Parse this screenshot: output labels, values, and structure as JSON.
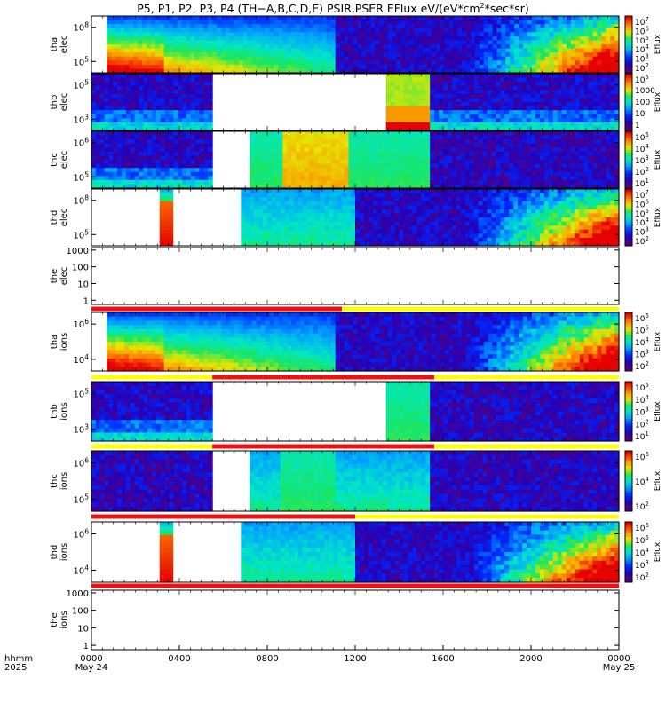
{
  "title": {
    "prefix": "P5, P1, P2, P3, P4 (TH−A,B,C,D,E) PSIR,PSER EFlux eV/(eV*cm",
    "sup": "2",
    "suffix": "*sec*sr)"
  },
  "x_axis": {
    "row1_label": "hhmm",
    "row2_label": "2025",
    "ticks": [
      "0000",
      "0400",
      "0800",
      "1200",
      "1600",
      "2000",
      "0000"
    ],
    "tick_hours": [
      0,
      4,
      8,
      12,
      16,
      20,
      24
    ],
    "dates": [
      "May 24",
      "May 25"
    ],
    "date_hours": [
      0,
      24
    ],
    "range_hours": [
      0,
      24
    ]
  },
  "colorbar_label": "Eflux",
  "colors": {
    "red_bar": "#ee1111",
    "yellow_bar": "#ffff00",
    "background": "#ffffff"
  },
  "chart_data": [
    {
      "type": "heatmap",
      "panel": "tha_elec",
      "ylabel": [
        "tha",
        "elec"
      ],
      "yticks": [
        {
          "value": 100000,
          "base": "10",
          "exp": "5"
        },
        {
          "value": 100000000,
          "base": "10",
          "exp": "8"
        }
      ],
      "colorbar": {
        "ticks": [
          {
            "base": "10",
            "exp": "7"
          },
          {
            "base": "10",
            "exp": "6"
          },
          {
            "base": "10",
            "exp": "5"
          },
          {
            "base": "10",
            "exp": "4"
          },
          {
            "base": "10",
            "exp": "3"
          },
          {
            "base": "10",
            "exp": "2"
          }
        ]
      },
      "no_data_hours": [
        [
          0,
          0.7
        ]
      ],
      "segments": [
        {
          "start": 0.7,
          "end": 11.1,
          "pattern": "outer_hot"
        },
        {
          "start": 11.1,
          "end": 24,
          "pattern": "noise_rising"
        }
      ]
    },
    {
      "type": "heatmap",
      "panel": "thb_elec",
      "ylabel": [
        "thb",
        "elec"
      ],
      "yticks": [
        {
          "value": 1000,
          "base": "10",
          "exp": "3"
        },
        {
          "value": 100000,
          "base": "10",
          "exp": "5"
        }
      ],
      "colorbar": {
        "ticks": [
          {
            "base": "10",
            "exp": "5"
          },
          {
            "base": "",
            "exp": "",
            "text": "1000"
          },
          {
            "base": "",
            "exp": "",
            "text": "100"
          },
          {
            "base": "",
            "exp": "",
            "text": "10"
          },
          {
            "base": "",
            "exp": "",
            "text": "1"
          }
        ]
      },
      "no_data_hours": [
        [
          5.5,
          13.4
        ]
      ],
      "segments": [
        {
          "start": 0,
          "end": 5.5,
          "pattern": "noise_lowband"
        },
        {
          "start": 13.4,
          "end": 15.4,
          "pattern": "warm_block"
        },
        {
          "start": 15.4,
          "end": 24,
          "pattern": "noise_lowband"
        }
      ]
    },
    {
      "type": "heatmap",
      "panel": "thc_elec",
      "ylabel": [
        "thc",
        "elec"
      ],
      "yticks": [
        {
          "value": 100000,
          "base": "10",
          "exp": "5"
        },
        {
          "value": 1000000,
          "base": "10",
          "exp": "6"
        }
      ],
      "colorbar": {
        "ticks": [
          {
            "base": "10",
            "exp": "5"
          },
          {
            "base": "10",
            "exp": "4"
          },
          {
            "base": "10",
            "exp": "3"
          },
          {
            "base": "10",
            "exp": "2"
          },
          {
            "base": "10",
            "exp": "1"
          }
        ]
      },
      "no_data_hours": [
        [
          5.5,
          7.2
        ]
      ],
      "segments": [
        {
          "start": 0,
          "end": 5.5,
          "pattern": "noise_lowband"
        },
        {
          "start": 7.2,
          "end": 8.7,
          "pattern": "green_block"
        },
        {
          "start": 8.7,
          "end": 11.7,
          "pattern": "orange_block"
        },
        {
          "start": 11.7,
          "end": 15.4,
          "pattern": "green_block"
        },
        {
          "start": 15.4,
          "end": 24,
          "pattern": "noise"
        }
      ]
    },
    {
      "type": "heatmap",
      "panel": "thd_elec",
      "ylabel": [
        "thd",
        "elec"
      ],
      "yticks": [
        {
          "value": 100000,
          "base": "10",
          "exp": "5"
        },
        {
          "value": 100000000,
          "base": "10",
          "exp": "8"
        }
      ],
      "colorbar": {
        "ticks": [
          {
            "base": "10",
            "exp": "7"
          },
          {
            "base": "10",
            "exp": "6"
          },
          {
            "base": "10",
            "exp": "5"
          },
          {
            "base": "10",
            "exp": "4"
          },
          {
            "base": "10",
            "exp": "3"
          },
          {
            "base": "10",
            "exp": "2"
          }
        ]
      },
      "no_data_hours": [
        [
          0,
          3.1
        ],
        [
          3.7,
          6.8
        ]
      ],
      "segments": [
        {
          "start": 3.1,
          "end": 3.7,
          "pattern": "hot_strip"
        },
        {
          "start": 6.8,
          "end": 12,
          "pattern": "cool_block"
        },
        {
          "start": 12,
          "end": 24,
          "pattern": "noise_rising"
        }
      ]
    },
    {
      "type": "empty",
      "panel": "the_elec",
      "ylabel": [
        "the",
        "elec"
      ],
      "yticks": [
        {
          "value": 1,
          "text": "1"
        },
        {
          "value": 10,
          "text": "10"
        },
        {
          "value": 100,
          "text": "100"
        },
        {
          "value": 1000,
          "text": "1000"
        }
      ],
      "status_bar": [
        {
          "start": 0,
          "end": 11.4,
          "color": "red"
        },
        {
          "start": 11.4,
          "end": 24,
          "color": "yellow"
        }
      ]
    },
    {
      "type": "heatmap",
      "panel": "tha_ions",
      "ylabel": [
        "tha",
        "ions"
      ],
      "yticks": [
        {
          "value": 10000,
          "base": "10",
          "exp": "4"
        },
        {
          "value": 1000000,
          "base": "10",
          "exp": "6"
        }
      ],
      "colorbar": {
        "ticks": [
          {
            "base": "10",
            "exp": "6"
          },
          {
            "base": "10",
            "exp": "5"
          },
          {
            "base": "10",
            "exp": "4"
          },
          {
            "base": "10",
            "exp": "3"
          },
          {
            "base": "10",
            "exp": "2"
          }
        ]
      },
      "no_data_hours": [
        [
          0,
          0.7
        ]
      ],
      "segments": [
        {
          "start": 0.7,
          "end": 11.1,
          "pattern": "outer_hot"
        },
        {
          "start": 11.1,
          "end": 24,
          "pattern": "noise_rising"
        }
      ],
      "status_bar": [
        {
          "start": 0,
          "end": 5.5,
          "color": "yellow"
        },
        {
          "start": 5.5,
          "end": 15.6,
          "color": "red"
        },
        {
          "start": 15.6,
          "end": 24,
          "color": "yellow"
        }
      ]
    },
    {
      "type": "heatmap",
      "panel": "thb_ions",
      "ylabel": [
        "thb",
        "ions"
      ],
      "yticks": [
        {
          "value": 1000,
          "base": "10",
          "exp": "3"
        },
        {
          "value": 100000,
          "base": "10",
          "exp": "5"
        }
      ],
      "colorbar": {
        "ticks": [
          {
            "base": "10",
            "exp": "5"
          },
          {
            "base": "10",
            "exp": "4"
          },
          {
            "base": "10",
            "exp": "3"
          },
          {
            "base": "10",
            "exp": "2"
          },
          {
            "base": "10",
            "exp": "1"
          }
        ]
      },
      "no_data_hours": [
        [
          5.5,
          13.4
        ]
      ],
      "segments": [
        {
          "start": 0,
          "end": 5.5,
          "pattern": "noise_lowband"
        },
        {
          "start": 13.4,
          "end": 15.4,
          "pattern": "green_block"
        },
        {
          "start": 15.4,
          "end": 24,
          "pattern": "noise"
        }
      ],
      "status_bar": [
        {
          "start": 0,
          "end": 5.5,
          "color": "yellow"
        },
        {
          "start": 5.5,
          "end": 15.6,
          "color": "red"
        },
        {
          "start": 15.6,
          "end": 24,
          "color": "yellow"
        }
      ]
    },
    {
      "type": "heatmap",
      "panel": "thc_ions",
      "ylabel": [
        "thc",
        "ions"
      ],
      "yticks": [
        {
          "value": 100000,
          "base": "10",
          "exp": "5"
        },
        {
          "value": 1000000,
          "base": "10",
          "exp": "6"
        }
      ],
      "colorbar": {
        "ticks": [
          {
            "base": "10",
            "exp": "6"
          },
          {
            "base": "10",
            "exp": "4"
          },
          {
            "base": "10",
            "exp": "2"
          }
        ]
      },
      "no_data_hours": [
        [
          5.5,
          7.2
        ]
      ],
      "segments": [
        {
          "start": 0,
          "end": 5.5,
          "pattern": "noise"
        },
        {
          "start": 7.2,
          "end": 8.6,
          "pattern": "cool_block"
        },
        {
          "start": 8.6,
          "end": 11.1,
          "pattern": "green_block"
        },
        {
          "start": 11.1,
          "end": 15.4,
          "pattern": "cool_block"
        },
        {
          "start": 15.4,
          "end": 24,
          "pattern": "noise"
        }
      ],
      "status_bar": [
        {
          "start": 0,
          "end": 12,
          "color": "red"
        },
        {
          "start": 12,
          "end": 24,
          "color": "yellow"
        }
      ]
    },
    {
      "type": "heatmap",
      "panel": "thd_ions",
      "ylabel": [
        "thd",
        "ions"
      ],
      "yticks": [
        {
          "value": 10000,
          "base": "10",
          "exp": "4"
        },
        {
          "value": 1000000,
          "base": "10",
          "exp": "6"
        }
      ],
      "colorbar": {
        "ticks": [
          {
            "base": "10",
            "exp": "6"
          },
          {
            "base": "10",
            "exp": "5"
          },
          {
            "base": "10",
            "exp": "4"
          },
          {
            "base": "10",
            "exp": "3"
          },
          {
            "base": "10",
            "exp": "2"
          }
        ]
      },
      "no_data_hours": [
        [
          0,
          3.1
        ],
        [
          3.7,
          6.8
        ]
      ],
      "segments": [
        {
          "start": 3.1,
          "end": 3.7,
          "pattern": "hot_strip"
        },
        {
          "start": 6.8,
          "end": 12,
          "pattern": "cool_block"
        },
        {
          "start": 12,
          "end": 24,
          "pattern": "noise_rising"
        }
      ],
      "status_bar": [
        {
          "start": 0,
          "end": 24,
          "color": "red"
        }
      ]
    },
    {
      "type": "empty",
      "panel": "the_ions",
      "ylabel": [
        "the",
        "ions"
      ],
      "yticks": [
        {
          "value": 1,
          "text": "1"
        },
        {
          "value": 10,
          "text": "10"
        },
        {
          "value": 100,
          "text": "100"
        },
        {
          "value": 1000,
          "text": "1000"
        }
      ]
    }
  ]
}
